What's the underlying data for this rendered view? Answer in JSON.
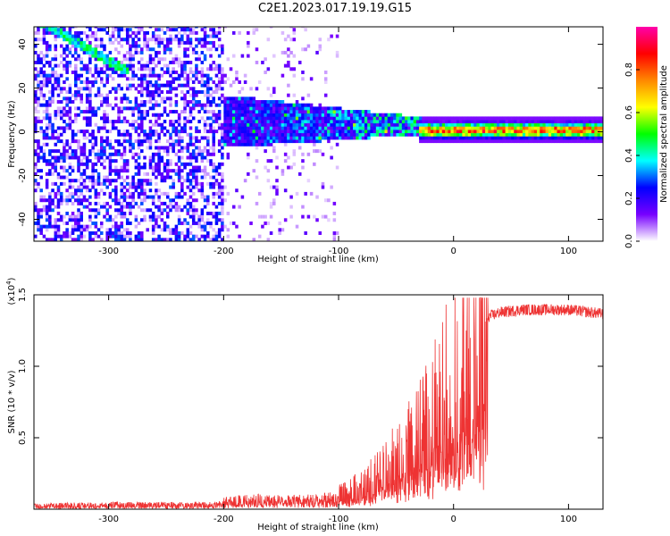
{
  "title": "C2E1.2023.017.19.19.G15",
  "colorbar": {
    "label": "Normalized spectral amplitude",
    "ticks": [
      "0.0",
      "0.2",
      "0.4",
      "0.6",
      "0.8"
    ],
    "colormap": [
      "#ffffff",
      "#7700ff",
      "#0000ff",
      "#00ffff",
      "#00ff00",
      "#ffff00",
      "#ff8800",
      "#ff0000",
      "#ff00aa"
    ]
  },
  "chart_data": [
    {
      "type": "heatmap",
      "xlabel": "Height of straight line (km)",
      "ylabel": "Frequency (Hz)",
      "xlim": [
        -365,
        130
      ],
      "ylim": [
        -50,
        48
      ],
      "xticks": [
        -300,
        -200,
        -100,
        0,
        100
      ],
      "yticks": [
        -40,
        -20,
        0,
        20,
        40
      ],
      "colorbar_range": [
        0,
        1
      ],
      "features": {
        "diagonal_streak": {
          "from": [
            -362,
            50
          ],
          "to": [
            -285,
            27
          ]
        },
        "noise_region": {
          "x_range": [
            -365,
            -200
          ],
          "freq_range": [
            -50,
            48
          ]
        },
        "sparse_region": {
          "x_range": [
            -200,
            -100
          ],
          "freq_range": [
            -50,
            48
          ]
        },
        "converging_band": {
          "x_range": [
            -200,
            -30
          ],
          "center_freq": 4,
          "half_width_start": 12,
          "half_width_end": 4
        },
        "narrow_line": {
          "x_range": [
            -30,
            130
          ],
          "center_freq": 0,
          "peak_amplitude": 0.95
        }
      }
    },
    {
      "type": "line",
      "xlabel": "Height of straight line (km)",
      "ylabel": "SNR (10 * v/v)",
      "scale_label": "(x10",
      "scale_exp": "4",
      "scale_suffix": ")",
      "xlim": [
        -365,
        130
      ],
      "ylim": [
        0,
        1.5
      ],
      "xticks": [
        -300,
        -200,
        -100,
        0,
        100
      ],
      "yticks": [
        0.5,
        1.0,
        1.5
      ],
      "ytick_labels": [
        "0.5",
        "1.0",
        "1.5"
      ],
      "color": "#ee3333",
      "series": [
        {
          "x": [
            -365,
            -300,
            -250,
            -210,
            -190,
            -170,
            -150,
            -120,
            -100,
            -80,
            -60,
            -40,
            -20,
            -10,
            0,
            10,
            20,
            30,
            40,
            60,
            80,
            100,
            120,
            130
          ],
          "y": [
            0.03,
            0.04,
            0.04,
            0.04,
            0.07,
            0.08,
            0.07,
            0.08,
            0.1,
            0.17,
            0.28,
            0.45,
            0.65,
            0.85,
            1.0,
            1.15,
            1.27,
            1.35,
            1.38,
            1.4,
            1.4,
            1.4,
            1.38,
            1.37
          ]
        }
      ]
    }
  ]
}
